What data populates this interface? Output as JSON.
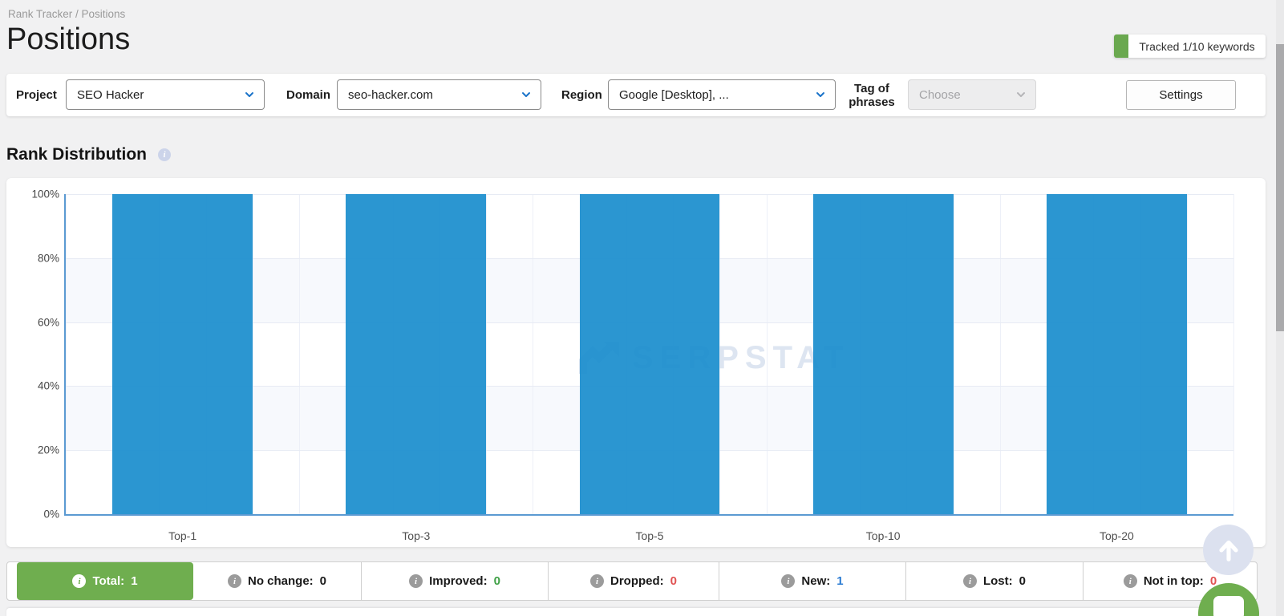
{
  "header": {
    "breadcrumb": "Rank Tracker / Positions",
    "title": "Positions",
    "tracked_badge": "Tracked 1/10 keywords"
  },
  "filter_bar": {
    "project_label": "Project",
    "project_value": "SEO Hacker",
    "domain_label": "Domain",
    "domain_value": "seo-hacker.com",
    "region_label": "Region",
    "region_value": "Google [Desktop], ...",
    "tag_label": "Tag of phrases",
    "tag_placeholder": "Choose",
    "settings_label": "Settings"
  },
  "section_title": "Rank Distribution",
  "chart_data": {
    "type": "bar",
    "title": "Rank Distribution",
    "categories": [
      "Top-1",
      "Top-3",
      "Top-5",
      "Top-10",
      "Top-20"
    ],
    "values": [
      100,
      100,
      100,
      100,
      100
    ],
    "xlabel": "",
    "ylabel": "",
    "ylim": [
      0,
      100
    ],
    "ytick_labels": [
      "100%",
      "80%",
      "60%",
      "40%",
      "20%",
      "0%"
    ],
    "grid": true,
    "legend": "none",
    "bar_color": "#1b8ecd",
    "watermark": "SERPSTAT"
  },
  "stats": {
    "items": [
      {
        "label": "Total:",
        "value": "1",
        "active": true,
        "value_color": "#ffffff"
      },
      {
        "label": "No change:",
        "value": "0",
        "active": false,
        "value_color": "#1a1a1a"
      },
      {
        "label": "Improved:",
        "value": "0",
        "active": false,
        "value_color": "#3ea045"
      },
      {
        "label": "Dropped:",
        "value": "0",
        "active": false,
        "value_color": "#e05252"
      },
      {
        "label": "New:",
        "value": "1",
        "active": false,
        "value_color": "#2b7cd3"
      },
      {
        "label": "Lost:",
        "value": "0",
        "active": false,
        "value_color": "#1a1a1a"
      },
      {
        "label": "Not in top:",
        "value": "0",
        "active": false,
        "value_color": "#e05252"
      }
    ]
  },
  "colors": {
    "accent_blue": "#1b8ecd",
    "axis_blue": "#5b9ad2",
    "active_green": "#6fae4f",
    "badge_green": "#6aa84f"
  }
}
